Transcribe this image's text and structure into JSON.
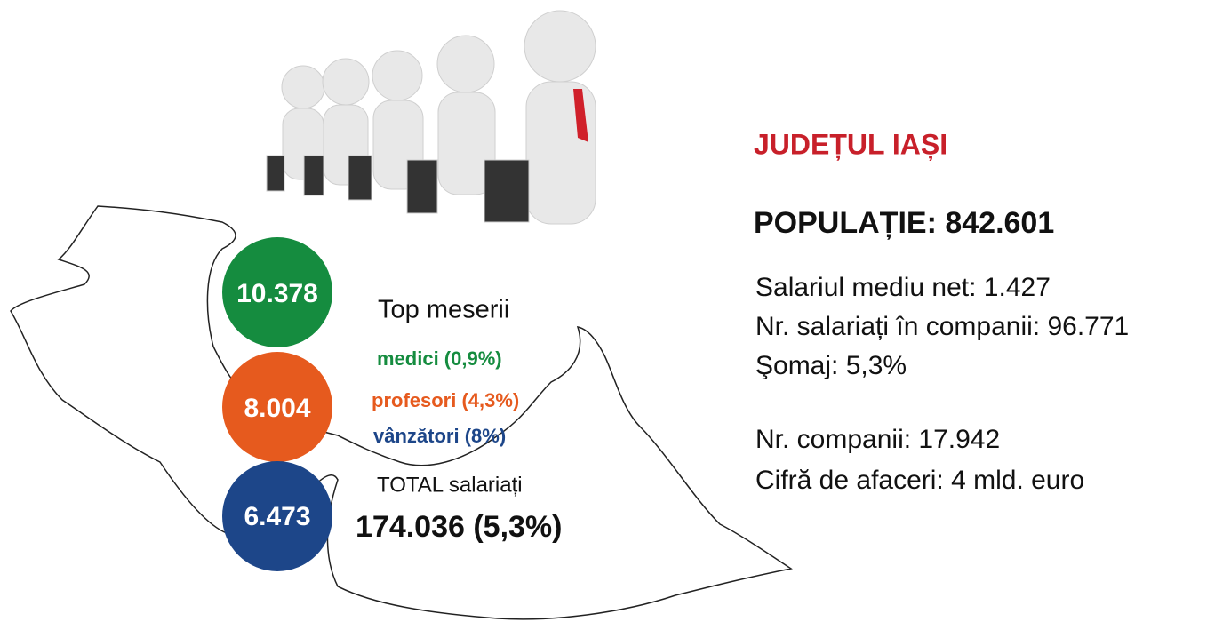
{
  "circles": [
    "10.378",
    "8.004",
    "6.473"
  ],
  "top_meserii": {
    "title": "Top meserii",
    "items": [
      "medici (0,9%)",
      "profesori (4,3%)",
      "vânzători (8%)"
    ]
  },
  "total": {
    "label": "TOTAL salariați",
    "value": "174.036 (5,3%)"
  },
  "county": {
    "title": "JUDEȚUL IAȘI",
    "population": "POPULAȚIE: 842.601",
    "stats": [
      "Salariul mediu net: 1.427",
      "Nr. salariați în companii: 96.771",
      "Şomaj: 5,3%"
    ],
    "stats2": [
      "Nr. companii: 17.942",
      "Cifră de afaceri: 4 mld. euro"
    ]
  }
}
